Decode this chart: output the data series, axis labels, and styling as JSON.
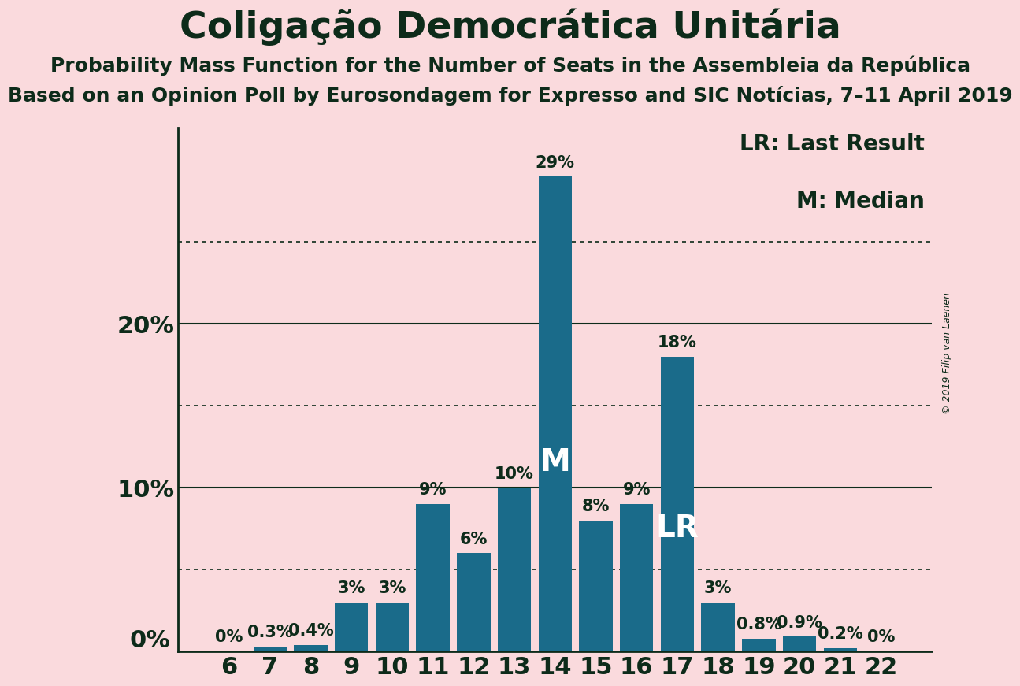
{
  "title": "Coligação Democrática Unitária",
  "subtitle1": "Probability Mass Function for the Number of Seats in the Assembleia da República",
  "subtitle2": "Based on an Opinion Poll by Eurosondagem for Expresso and SIC Notícias, 7–11 April 2019",
  "copyright": "© 2019 Filip van Laenen",
  "categories": [
    6,
    7,
    8,
    9,
    10,
    11,
    12,
    13,
    14,
    15,
    16,
    17,
    18,
    19,
    20,
    21,
    22
  ],
  "values": [
    0.0,
    0.3,
    0.4,
    3.0,
    3.0,
    9.0,
    6.0,
    10.0,
    29.0,
    8.0,
    9.0,
    18.0,
    3.0,
    0.8,
    0.9,
    0.2,
    0.0
  ],
  "bar_color": "#1a6b8a",
  "background_color": "#fadadd",
  "text_color": "#0d2b1a",
  "median_seat": 14,
  "last_result_seat": 17,
  "ylim": [
    0,
    32
  ],
  "yticks": [
    10,
    20
  ],
  "ytick_labels": [
    "10%",
    "20%"
  ],
  "solid_gridlines": [
    10,
    20
  ],
  "dotted_gridlines": [
    5,
    15,
    25
  ],
  "title_fontsize": 34,
  "subtitle_fontsize": 18,
  "axis_tick_fontsize": 22,
  "bar_label_fontsize": 15,
  "annotation_fontsize": 28,
  "legend_fontsize": 20,
  "bar_labels": [
    "0%",
    "0.3%",
    "0.4%",
    "3%",
    "3%",
    "9%",
    "6%",
    "10%",
    "29%",
    "8%",
    "9%",
    "18%",
    "3%",
    "0.8%",
    "0.9%",
    "0.2%",
    "0%"
  ]
}
